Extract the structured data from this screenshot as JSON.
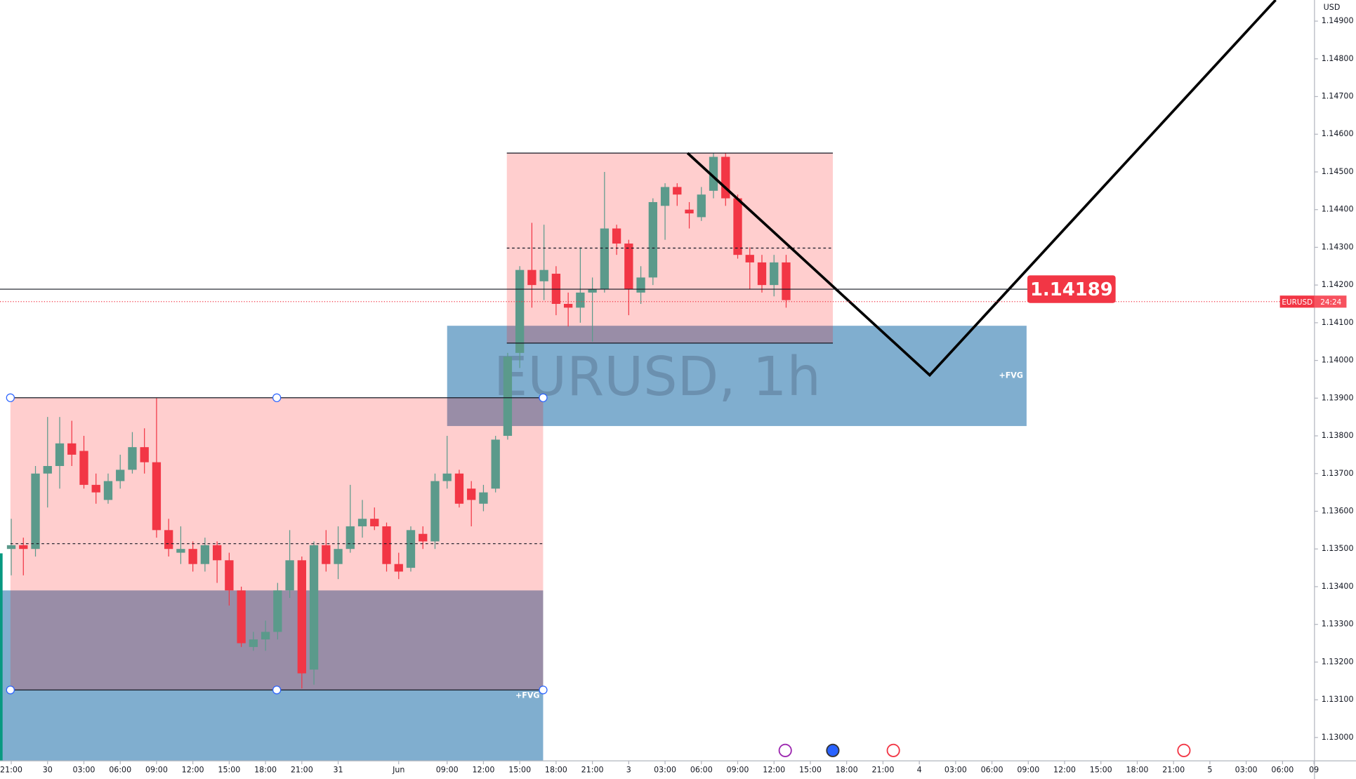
{
  "chart_data": {
    "type": "candlestick",
    "watermark": "EURUSD, 1h",
    "currency": "USD",
    "symbol_tag": "EURUSD",
    "countdown": "24:24",
    "up_color": "#5b9a8b",
    "down_color": "#f23645",
    "open": [
      1.135,
      1.1351,
      1.135,
      1.137,
      1.1372,
      1.1378,
      1.1376,
      1.1367,
      1.1363,
      1.1368,
      1.1371,
      1.1377,
      1.1373,
      1.1355,
      1.1349,
      1.135,
      1.1346,
      1.1351,
      1.1347,
      1.1339,
      1.1324,
      1.1326,
      1.1328,
      1.1339,
      1.1347,
      1.1318,
      1.1351,
      1.1346,
      1.135,
      1.1356,
      1.1358,
      1.1356,
      1.1346,
      1.1345,
      1.1354,
      1.1352,
      1.1368,
      1.137,
      1.1366,
      1.1362,
      1.1366,
      1.138,
      1.1402,
      1.1424,
      1.1421,
      1.1423,
      1.1415,
      1.1414,
      1.1418,
      1.1419,
      1.1435,
      1.1431,
      1.1418,
      1.1422,
      1.1441,
      1.1446,
      1.144,
      1.1438,
      1.1445,
      1.1454,
      1.1443,
      1.1428,
      1.1426,
      1.142,
      1.1426
    ],
    "high": [
      1.1358,
      1.1353,
      1.1372,
      1.1385,
      1.1385,
      1.1384,
      1.138,
      1.137,
      1.137,
      1.1375,
      1.1381,
      1.1382,
      1.139,
      1.1358,
      1.1356,
      1.1352,
      1.1353,
      1.1352,
      1.1349,
      1.134,
      1.1328,
      1.1331,
      1.1341,
      1.1355,
      1.1348,
      1.1352,
      1.1355,
      1.1356,
      1.1367,
      1.1363,
      1.1361,
      1.1357,
      1.1349,
      1.1356,
      1.1356,
      1.137,
      1.138,
      1.1371,
      1.1368,
      1.1367,
      1.138,
      1.1402,
      1.1425,
      1.14365,
      1.1436,
      1.1425,
      1.1418,
      1.143,
      1.1422,
      1.145,
      1.1436,
      1.1432,
      1.1425,
      1.1443,
      1.1447,
      1.1447,
      1.1442,
      1.1446,
      1.1455,
      1.1455,
      1.1444,
      1.143,
      1.1428,
      1.1428,
      1.1428
    ],
    "low": [
      1.1343,
      1.1343,
      1.1348,
      1.1361,
      1.1366,
      1.1372,
      1.1366,
      1.1362,
      1.1362,
      1.1366,
      1.137,
      1.137,
      1.1353,
      1.1348,
      1.1346,
      1.1344,
      1.1344,
      1.1341,
      1.1335,
      1.1324,
      1.1323,
      1.1323,
      1.1326,
      1.1337,
      1.1313,
      1.1314,
      1.1344,
      1.1342,
      1.1349,
      1.1353,
      1.1355,
      1.1344,
      1.1342,
      1.1344,
      1.135,
      1.135,
      1.1366,
      1.1361,
      1.1356,
      1.136,
      1.1365,
      1.1379,
      1.1398,
      1.1414,
      1.1416,
      1.1412,
      1.1409,
      1.141,
      1.1405,
      1.1418,
      1.1428,
      1.1412,
      1.1415,
      1.142,
      1.1432,
      1.1441,
      1.1435,
      1.1437,
      1.1443,
      1.1441,
      1.1427,
      1.1419,
      1.1418,
      1.1417,
      1.1414
    ],
    "close": [
      1.1351,
      1.135,
      1.137,
      1.1372,
      1.1378,
      1.1375,
      1.1367,
      1.1365,
      1.1368,
      1.1371,
      1.1377,
      1.1373,
      1.1355,
      1.135,
      1.135,
      1.1346,
      1.1351,
      1.1347,
      1.1339,
      1.1325,
      1.1326,
      1.1328,
      1.1339,
      1.1347,
      1.1317,
      1.1351,
      1.1346,
      1.135,
      1.1356,
      1.1358,
      1.1356,
      1.1346,
      1.1344,
      1.1355,
      1.1352,
      1.1368,
      1.137,
      1.1362,
      1.1363,
      1.1365,
      1.1379,
      1.1401,
      1.1424,
      1.142,
      1.1424,
      1.1415,
      1.1414,
      1.1418,
      1.1419,
      1.1435,
      1.1431,
      1.1419,
      1.1422,
      1.1442,
      1.1446,
      1.1444,
      1.1439,
      1.1444,
      1.1454,
      1.1443,
      1.1428,
      1.1426,
      1.142,
      1.1426,
      1.1416
    ],
    "xlim": [
      -0.93,
      107.64
    ],
    "xticks": [
      {
        "value": 0,
        "label": "21:00"
      },
      {
        "value": 3,
        "label": "30"
      },
      {
        "value": 6,
        "label": "03:00"
      },
      {
        "value": 9,
        "label": "06:00"
      },
      {
        "value": 12,
        "label": "09:00"
      },
      {
        "value": 15,
        "label": "12:00"
      },
      {
        "value": 18,
        "label": "15:00"
      },
      {
        "value": 21,
        "label": "18:00"
      },
      {
        "value": 24,
        "label": "21:00"
      },
      {
        "value": 27,
        "label": "31"
      },
      {
        "value": 32,
        "label": "Jun"
      },
      {
        "value": 36,
        "label": "09:00"
      },
      {
        "value": 39,
        "label": "12:00"
      },
      {
        "value": 42,
        "label": "15:00"
      },
      {
        "value": 45,
        "label": "18:00"
      },
      {
        "value": 48,
        "label": "21:00"
      },
      {
        "value": 51,
        "label": "3"
      },
      {
        "value": 54,
        "label": "03:00"
      },
      {
        "value": 57,
        "label": "06:00"
      },
      {
        "value": 60,
        "label": "09:00"
      },
      {
        "value": 63,
        "label": "12:00"
      },
      {
        "value": 66,
        "label": "15:00"
      },
      {
        "value": 69,
        "label": "18:00"
      },
      {
        "value": 72,
        "label": "21:00"
      },
      {
        "value": 75,
        "label": "4"
      },
      {
        "value": 78,
        "label": "03:00"
      },
      {
        "value": 81,
        "label": "06:00"
      },
      {
        "value": 84,
        "label": "09:00"
      },
      {
        "value": 87,
        "label": "12:00"
      },
      {
        "value": 90,
        "label": "15:00"
      },
      {
        "value": 93,
        "label": "18:00"
      },
      {
        "value": 96,
        "label": "21:00"
      },
      {
        "value": 99,
        "label": "5"
      },
      {
        "value": 102,
        "label": "03:00"
      },
      {
        "value": 105,
        "label": "06:00"
      },
      {
        "value": 107.6,
        "label": "09"
      }
    ],
    "ylim": [
      1.12938,
      1.14956
    ],
    "yticks": [
      {
        "value": 1.13,
        "label": "1.13000"
      },
      {
        "value": 1.131,
        "label": "1.13100"
      },
      {
        "value": 1.132,
        "label": "1.13200"
      },
      {
        "value": 1.133,
        "label": "1.13300"
      },
      {
        "value": 1.134,
        "label": "1.13400"
      },
      {
        "value": 1.135,
        "label": "1.13500"
      },
      {
        "value": 1.136,
        "label": "1.13600"
      },
      {
        "value": 1.137,
        "label": "1.13700"
      },
      {
        "value": 1.138,
        "label": "1.13800"
      },
      {
        "value": 1.139,
        "label": "1.13900"
      },
      {
        "value": 1.14,
        "label": "1.14000"
      },
      {
        "value": 1.141,
        "label": "1.14100"
      },
      {
        "value": 1.142,
        "label": "1.14200"
      },
      {
        "value": 1.143,
        "label": "1.14300"
      },
      {
        "value": 1.144,
        "label": "1.14400"
      },
      {
        "value": 1.145,
        "label": "1.14500"
      },
      {
        "value": 1.146,
        "label": "1.14600"
      },
      {
        "value": 1.147,
        "label": "1.14700"
      },
      {
        "value": 1.148,
        "label": "1.14800"
      },
      {
        "value": 1.149,
        "label": "1.14900"
      }
    ],
    "fvgs": [
      {
        "xrange": [
          -0.93,
          43.93
        ],
        "yrange": [
          1.12938,
          1.1339
        ],
        "label": "+FVG"
      },
      {
        "xrange": [
          36.0,
          83.86
        ],
        "yrange": [
          1.13826,
          1.14092
        ],
        "label": "+FVG"
      }
    ],
    "boxes": [
      {
        "xrange": [
          -0.07,
          43.93
        ],
        "yrange": [
          1.13126,
          1.13901
        ],
        "mid": 1.13514
      },
      {
        "xrange": [
          40.93,
          67.86
        ],
        "yrange": [
          1.14046,
          1.1455
        ],
        "mid": 1.14298
      }
    ],
    "projection": {
      "x": [
        55.86,
        75.86,
        104.43
      ],
      "y": [
        1.1455,
        1.13961,
        1.14956
      ]
    },
    "last_price": 1.14189,
    "current_price": 1.14156
  }
}
